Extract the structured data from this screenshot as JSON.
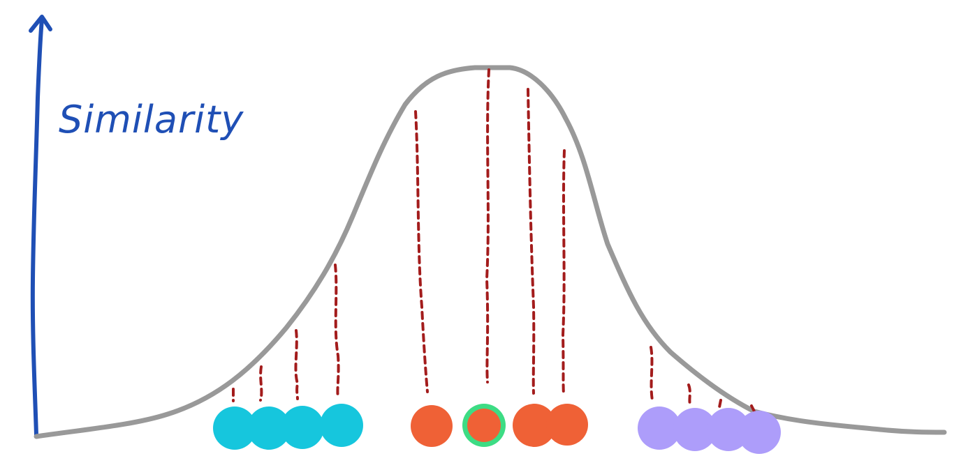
{
  "axis": {
    "y_label": "Similarity"
  },
  "colors": {
    "axis": "#1f4fb5",
    "curve": "#999999",
    "drop_line": "#a31c1c",
    "cluster_left": "#16c6dd",
    "cluster_middle": "#ef6136",
    "cluster_right": "#ad9dfa",
    "highlight_ring": "#3ddc84"
  },
  "clusters": [
    {
      "name": "left",
      "color_key": "cluster_left",
      "count": 4
    },
    {
      "name": "middle",
      "color_key": "cluster_middle",
      "count": 4,
      "highlighted_index": 1
    },
    {
      "name": "right",
      "color_key": "cluster_right",
      "count": 4
    }
  ]
}
